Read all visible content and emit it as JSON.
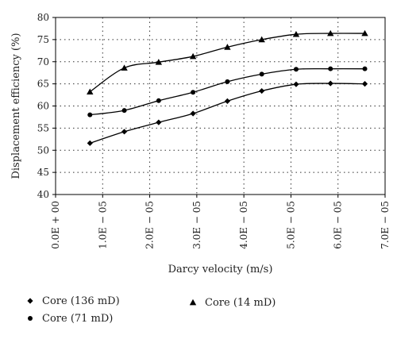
{
  "chart_data": {
    "type": "line",
    "title": "",
    "xlabel": "Darcy velocity (m/s)",
    "ylabel": "Displacement efficiency (%)",
    "xlim": [
      0,
      7e-05
    ],
    "ylim": [
      40,
      80
    ],
    "x_ticks": [
      0,
      1e-05,
      2e-05,
      3e-05,
      4e-05,
      5e-05,
      6e-05,
      7e-05
    ],
    "x_tick_labels": [
      "0.0E + 00",
      "1.0E − 05",
      "2.0E − 05",
      "3.0E − 05",
      "4.0E − 05",
      "5.0E − 05",
      "6.0E − 05",
      "7.0E − 05"
    ],
    "y_ticks": [
      40,
      45,
      50,
      55,
      60,
      65,
      70,
      75,
      80
    ],
    "y_tick_labels": [
      "40",
      "45",
      "50",
      "55",
      "60",
      "65",
      "70",
      "75",
      "80"
    ],
    "grid": true,
    "legend_position": "bottom-left",
    "series": [
      {
        "name": "Core (136 mD)",
        "marker": "diamond",
        "color": "#000000",
        "x": [
          7.3e-06,
          1.46e-05,
          2.19e-05,
          2.92e-05,
          3.65e-05,
          4.38e-05,
          5.11e-05,
          5.84e-05,
          6.57e-05
        ],
        "y": [
          51.6,
          54.2,
          56.3,
          58.3,
          61.1,
          63.4,
          64.9,
          65.1,
          65.0
        ]
      },
      {
        "name": "Core (71 mD)",
        "marker": "circle",
        "color": "#000000",
        "x": [
          7.3e-06,
          1.46e-05,
          2.19e-05,
          2.92e-05,
          3.65e-05,
          4.38e-05,
          5.11e-05,
          5.84e-05,
          6.57e-05
        ],
        "y": [
          58.0,
          59.0,
          61.2,
          63.1,
          65.5,
          67.2,
          68.3,
          68.4,
          68.4
        ]
      },
      {
        "name": "Core (14 mD)",
        "marker": "triangle",
        "color": "#000000",
        "x": [
          7.3e-06,
          1.46e-05,
          2.19e-05,
          2.92e-05,
          3.65e-05,
          4.38e-05,
          5.11e-05,
          5.84e-05,
          6.57e-05
        ],
        "y": [
          63.2,
          68.6,
          69.9,
          71.2,
          73.3,
          75.0,
          76.2,
          76.4,
          76.4
        ]
      }
    ]
  }
}
